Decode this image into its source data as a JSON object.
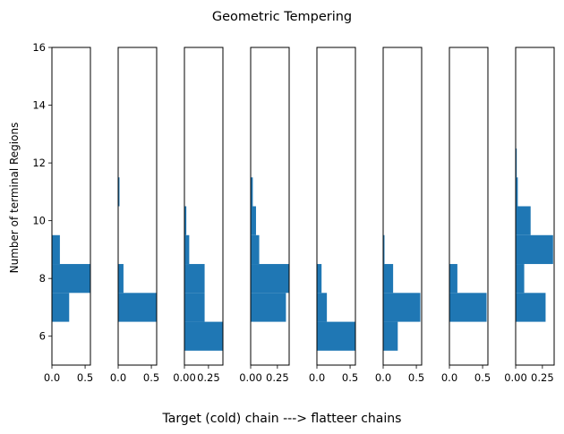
{
  "title": "Geometric Tempering",
  "ylabel": "Number of terminal Regions",
  "xlabel": "Target (cold) chain ---> flatteer chains",
  "bar_color": "#1f77b4",
  "chart_data": {
    "type": "bar",
    "orientation": "horizontal-histogram",
    "title": "Geometric Tempering",
    "xlabel": "Target (cold) chain ---> flatteer chains",
    "ylabel": "Number of terminal Regions",
    "ylim": [
      5,
      16
    ],
    "yticks": [
      "6",
      "8",
      "10",
      "12",
      "14",
      "16"
    ],
    "shared_y": true,
    "grid": false,
    "panels": [
      {
        "xlim": [
          0,
          0.58
        ],
        "xticks": [
          0,
          0.5
        ],
        "xtick_labels": [
          "0.0",
          "0.5"
        ],
        "bins": [
          {
            "y0": 6.5,
            "y1": 7.5,
            "value": 0.26
          },
          {
            "y0": 7.5,
            "y1": 8.5,
            "value": 0.58
          },
          {
            "y0": 8.5,
            "y1": 9.5,
            "value": 0.12
          }
        ]
      },
      {
        "xlim": [
          0,
          0.58
        ],
        "xticks": [
          0,
          0.5
        ],
        "xtick_labels": [
          "0.0",
          "0.5"
        ],
        "bins": [
          {
            "y0": 6.5,
            "y1": 7.5,
            "value": 0.58
          },
          {
            "y0": 7.5,
            "y1": 8.5,
            "value": 0.08
          },
          {
            "y0": 10.5,
            "y1": 11.5,
            "value": 0.02
          }
        ]
      },
      {
        "xlim": [
          0,
          0.4
        ],
        "xticks": [
          0,
          0.25
        ],
        "xtick_labels": [
          "0.00",
          "0.25"
        ],
        "bins": [
          {
            "y0": 5.5,
            "y1": 6.5,
            "value": 0.4
          },
          {
            "y0": 6.5,
            "y1": 7.5,
            "value": 0.21
          },
          {
            "y0": 7.5,
            "y1": 8.5,
            "value": 0.21
          },
          {
            "y0": 8.5,
            "y1": 9.5,
            "value": 0.05
          },
          {
            "y0": 9.5,
            "y1": 10.5,
            "value": 0.02
          }
        ]
      },
      {
        "xlim": [
          0,
          0.36
        ],
        "xticks": [
          0,
          0.25
        ],
        "xtick_labels": [
          "0.00",
          "0.25"
        ],
        "bins": [
          {
            "y0": 6.5,
            "y1": 7.5,
            "value": 0.33
          },
          {
            "y0": 7.5,
            "y1": 8.5,
            "value": 0.36
          },
          {
            "y0": 8.5,
            "y1": 9.5,
            "value": 0.08
          },
          {
            "y0": 9.5,
            "y1": 10.5,
            "value": 0.05
          },
          {
            "y0": 10.5,
            "y1": 11.5,
            "value": 0.02
          }
        ]
      },
      {
        "xlim": [
          0,
          0.58
        ],
        "xticks": [
          0,
          0.5
        ],
        "xtick_labels": [
          "0.0",
          "0.5"
        ],
        "bins": [
          {
            "y0": 5.5,
            "y1": 6.5,
            "value": 0.58
          },
          {
            "y0": 6.5,
            "y1": 7.5,
            "value": 0.15
          },
          {
            "y0": 7.5,
            "y1": 8.5,
            "value": 0.07
          }
        ]
      },
      {
        "xlim": [
          0,
          0.58
        ],
        "xticks": [
          0,
          0.5
        ],
        "xtick_labels": [
          "0.0",
          "0.5"
        ],
        "bins": [
          {
            "y0": 5.5,
            "y1": 6.5,
            "value": 0.22
          },
          {
            "y0": 6.5,
            "y1": 7.5,
            "value": 0.56
          },
          {
            "y0": 7.5,
            "y1": 8.5,
            "value": 0.15
          },
          {
            "y0": 8.5,
            "y1": 9.5,
            "value": 0.02
          }
        ]
      },
      {
        "xlim": [
          0,
          0.58
        ],
        "xticks": [
          0,
          0.5
        ],
        "xtick_labels": [
          "0.0",
          "0.5"
        ],
        "bins": [
          {
            "y0": 6.5,
            "y1": 7.5,
            "value": 0.56
          },
          {
            "y0": 7.5,
            "y1": 8.5,
            "value": 0.12
          }
        ]
      },
      {
        "xlim": [
          0,
          0.36
        ],
        "xticks": [
          0,
          0.25
        ],
        "xtick_labels": [
          "0.00",
          "0.25"
        ],
        "bins": [
          {
            "y0": 6.5,
            "y1": 7.5,
            "value": 0.28
          },
          {
            "y0": 7.5,
            "y1": 8.5,
            "value": 0.08
          },
          {
            "y0": 8.5,
            "y1": 9.5,
            "value": 0.35
          },
          {
            "y0": 9.5,
            "y1": 10.5,
            "value": 0.14
          },
          {
            "y0": 10.5,
            "y1": 11.5,
            "value": 0.02
          },
          {
            "y0": 11.5,
            "y1": 12.5,
            "value": 0.01
          }
        ]
      }
    ]
  }
}
